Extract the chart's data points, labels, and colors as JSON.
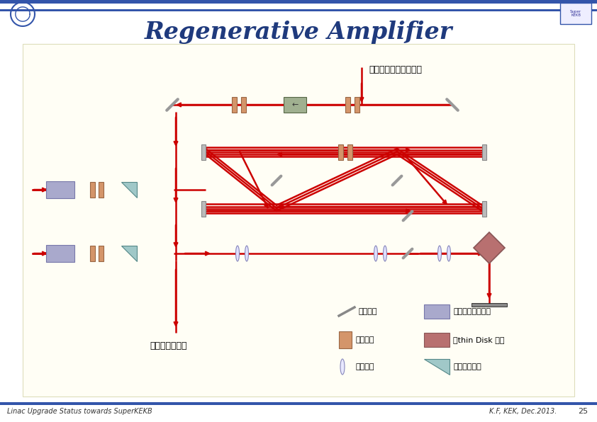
{
  "title": "Regenerative Amplifier",
  "title_color": "#1F3A7D",
  "bg_color": "#FFFAED",
  "slide_bg": "#FFFFFF",
  "header_bar_color": "#3355AA",
  "footer_bar_color": "#3355AA",
  "footer_left": "Linac Upgrade Status towards SuperKEKB",
  "footer_right": "K.F, KEK, Dec.2013.",
  "footer_page": "25",
  "beam_color": "#CC0000",
  "beam_lw": 1.8,
  "annotation_fiber": "ファイバーアンプより",
  "annotation_main": "メインアンプへ",
  "legend_mirror": "：ミラー",
  "legend_pockels": "：ポッケルスセル",
  "legend_waveplate": "：波長版",
  "legend_thindisk": "：thin Disk 結晶",
  "legend_lens": "：レンズ",
  "legend_polarizer": "：ポラライザ",
  "pockels_color": "#A9A9CC",
  "thindisk_color": "#B87070",
  "polarizer_color": "#A0C8C8",
  "waveplate_color": "#D4956A",
  "mirror_color": "#AAAAAA",
  "faraday_color": "#A0B090"
}
